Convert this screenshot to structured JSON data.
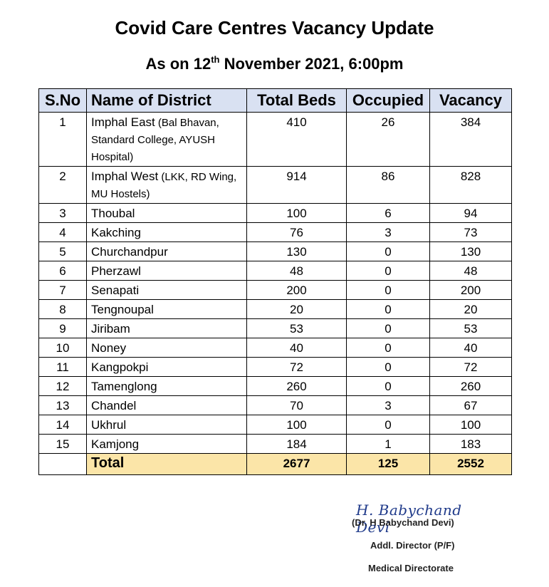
{
  "header": {
    "title": "Covid Care Centres Vacancy Update",
    "subtitle_prefix": "As on 12",
    "subtitle_sup": "th",
    "subtitle_suffix": " November 2021, 6:00pm"
  },
  "table": {
    "columns": [
      "S.No",
      "Name of District",
      "Total Beds",
      "Occupied",
      "Vacancy"
    ],
    "rows": [
      {
        "sno": "1",
        "name": "Imphal East",
        "detail": " (Bal Bhavan, Standard College, AYUSH Hospital)",
        "total": "410",
        "occupied": "26",
        "vacancy": "384"
      },
      {
        "sno": "2",
        "name": "Imphal West",
        "detail": " (LKK, RD Wing, MU Hostels)",
        "total": "914",
        "occupied": "86",
        "vacancy": "828"
      },
      {
        "sno": "3",
        "name": "Thoubal",
        "detail": "",
        "total": "100",
        "occupied": "6",
        "vacancy": "94"
      },
      {
        "sno": "4",
        "name": "Kakching",
        "detail": "",
        "total": "76",
        "occupied": "3",
        "vacancy": "73"
      },
      {
        "sno": "5",
        "name": "Churchandpur",
        "detail": "",
        "total": "130",
        "occupied": "0",
        "vacancy": "130"
      },
      {
        "sno": "6",
        "name": "Pherzawl",
        "detail": "",
        "total": "48",
        "occupied": "0",
        "vacancy": "48"
      },
      {
        "sno": "7",
        "name": "Senapati",
        "detail": "",
        "total": "200",
        "occupied": "0",
        "vacancy": "200"
      },
      {
        "sno": "8",
        "name": "Tengnoupal",
        "detail": "",
        "total": "20",
        "occupied": "0",
        "vacancy": "20"
      },
      {
        "sno": "9",
        "name": "Jiribam",
        "detail": "",
        "total": "53",
        "occupied": "0",
        "vacancy": "53"
      },
      {
        "sno": "10",
        "name": "Noney",
        "detail": "",
        "total": "40",
        "occupied": "0",
        "vacancy": "40"
      },
      {
        "sno": "11",
        "name": "Kangpokpi",
        "detail": "",
        "total": "72",
        "occupied": "0",
        "vacancy": "72"
      },
      {
        "sno": "12",
        "name": "Tamenglong",
        "detail": "",
        "total": "260",
        "occupied": "0",
        "vacancy": "260"
      },
      {
        "sno": "13",
        "name": "Chandel",
        "detail": "",
        "total": "70",
        "occupied": "3",
        "vacancy": "67"
      },
      {
        "sno": "14",
        "name": "Ukhrul",
        "detail": "",
        "total": "100",
        "occupied": "0",
        "vacancy": "100"
      },
      {
        "sno": "15",
        "name": "Kamjong",
        "detail": "",
        "total": "184",
        "occupied": "1",
        "vacancy": "183"
      }
    ],
    "total": {
      "label": "Total",
      "total": "2677",
      "occupied": "125",
      "vacancy": "2552"
    }
  },
  "signature": {
    "script": "H. Babychand Devi",
    "name": "(Dr. H Babychand Devi)",
    "designation": "Addl. Director (P/F)",
    "office": "Medical Directorate"
  },
  "colors": {
    "header_fill": "#d9e1f2",
    "total_fill": "#fbe5a8",
    "signature_ink": "#1f3a8a"
  }
}
